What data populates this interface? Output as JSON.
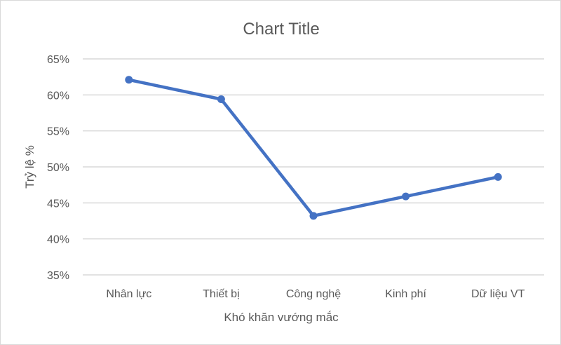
{
  "chart_data": {
    "type": "line",
    "title": "Chart Title",
    "xlabel": "Khó khăn vướng mắc",
    "ylabel": "Trỷ lệ %",
    "categories": [
      "Nhân lực",
      "Thiết bị",
      "Công nghệ",
      "Kinh phí",
      "Dữ liệu VT"
    ],
    "values": [
      62.1,
      59.4,
      43.2,
      45.9,
      48.6
    ],
    "ylim": [
      35,
      65
    ],
    "yticks": [
      35,
      40,
      45,
      50,
      55,
      60,
      65
    ],
    "ytick_labels": [
      "35%",
      "40%",
      "45%",
      "50%",
      "55%",
      "60%",
      "65%"
    ],
    "grid": true,
    "legend": "none",
    "line_color": "#4472C4",
    "grid_color": "#d9d9d9"
  }
}
